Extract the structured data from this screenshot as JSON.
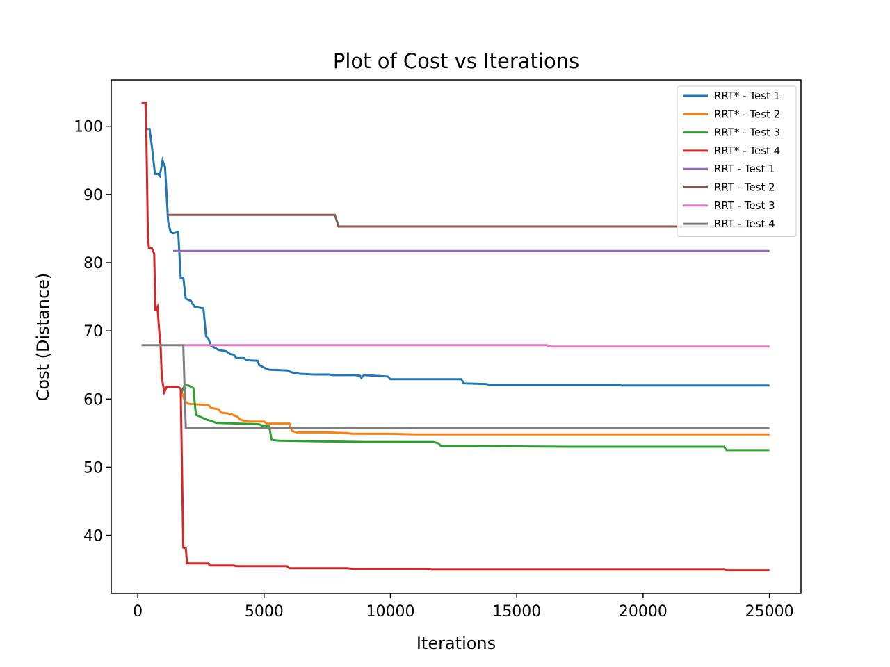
{
  "chart_data": {
    "type": "line",
    "title": "Plot of Cost vs Iterations",
    "xlabel": "Iterations",
    "ylabel": "Cost (Distance)",
    "xlim": [
      -1050,
      26250
    ],
    "ylim": [
      31.5,
      106.8
    ],
    "xticks": [
      0,
      5000,
      10000,
      15000,
      20000,
      25000
    ],
    "yticks": [
      40,
      50,
      60,
      70,
      80,
      90,
      100
    ],
    "grid": false,
    "legend_position": "top-right",
    "series": [
      {
        "name": "RRT* - Test 1",
        "color": "#1f77b4",
        "points": [
          [
            300,
            103.4
          ],
          [
            330,
            99.6
          ],
          [
            470,
            99.6
          ],
          [
            560,
            97.0
          ],
          [
            680,
            93.0
          ],
          [
            800,
            93.0
          ],
          [
            870,
            92.7
          ],
          [
            980,
            95.0
          ],
          [
            1080,
            94.0
          ],
          [
            1200,
            86.0
          ],
          [
            1300,
            84.5
          ],
          [
            1400,
            84.3
          ],
          [
            1600,
            84.5
          ],
          [
            1700,
            77.8
          ],
          [
            1800,
            77.8
          ],
          [
            1900,
            74.7
          ],
          [
            2100,
            74.4
          ],
          [
            2250,
            73.5
          ],
          [
            2600,
            73.3
          ],
          [
            2700,
            69.2
          ],
          [
            2800,
            68.8
          ],
          [
            2900,
            67.8
          ],
          [
            3200,
            67.2
          ],
          [
            3500,
            67.0
          ],
          [
            3650,
            66.6
          ],
          [
            3800,
            66.5
          ],
          [
            3900,
            66.0
          ],
          [
            4200,
            66.0
          ],
          [
            4300,
            65.7
          ],
          [
            4750,
            65.6
          ],
          [
            4800,
            65.0
          ],
          [
            5000,
            64.6
          ],
          [
            5200,
            64.3
          ],
          [
            5900,
            64.2
          ],
          [
            6100,
            63.9
          ],
          [
            6400,
            63.7
          ],
          [
            7000,
            63.6
          ],
          [
            7600,
            63.6
          ],
          [
            7700,
            63.5
          ],
          [
            8600,
            63.5
          ],
          [
            8800,
            63.4
          ],
          [
            8850,
            63.1
          ],
          [
            8950,
            63.5
          ],
          [
            9900,
            63.3
          ],
          [
            10000,
            62.9
          ],
          [
            10800,
            62.9
          ],
          [
            12800,
            62.9
          ],
          [
            12900,
            62.3
          ],
          [
            13800,
            62.2
          ],
          [
            13900,
            62.1
          ],
          [
            19000,
            62.1
          ],
          [
            19100,
            62.0
          ],
          [
            25000,
            62.0
          ]
        ]
      },
      {
        "name": "RRT* - Test 2",
        "color": "#ff7f0e",
        "points": [
          [
            1700,
            61.5
          ],
          [
            1850,
            59.8
          ],
          [
            2000,
            59.3
          ],
          [
            2800,
            59.1
          ],
          [
            2900,
            58.7
          ],
          [
            3200,
            58.5
          ],
          [
            3300,
            58.0
          ],
          [
            3700,
            57.8
          ],
          [
            3800,
            57.6
          ],
          [
            3950,
            57.4
          ],
          [
            4050,
            57.0
          ],
          [
            4200,
            56.8
          ],
          [
            4400,
            56.7
          ],
          [
            5000,
            56.7
          ],
          [
            5100,
            56.4
          ],
          [
            6000,
            56.4
          ],
          [
            6100,
            55.3
          ],
          [
            6300,
            55.1
          ],
          [
            7500,
            55.1
          ],
          [
            8300,
            55.0
          ],
          [
            8500,
            54.9
          ],
          [
            10000,
            54.9
          ],
          [
            11000,
            54.8
          ],
          [
            25000,
            54.8
          ]
        ]
      },
      {
        "name": "RRT* - Test 3",
        "color": "#2ca02c",
        "points": [
          [
            1700,
            61.5
          ],
          [
            1750,
            61.1
          ],
          [
            1850,
            62.0
          ],
          [
            2000,
            62.0
          ],
          [
            2200,
            61.6
          ],
          [
            2300,
            57.7
          ],
          [
            2700,
            57.0
          ],
          [
            2900,
            56.8
          ],
          [
            3100,
            56.5
          ],
          [
            4800,
            56.3
          ],
          [
            5000,
            56.0
          ],
          [
            5200,
            56.0
          ],
          [
            5300,
            54.0
          ],
          [
            5600,
            53.9
          ],
          [
            7000,
            53.8
          ],
          [
            9000,
            53.7
          ],
          [
            11700,
            53.7
          ],
          [
            11900,
            53.5
          ],
          [
            12000,
            53.1
          ],
          [
            13000,
            53.1
          ],
          [
            17000,
            53.0
          ],
          [
            23200,
            53.0
          ],
          [
            23300,
            52.5
          ],
          [
            25000,
            52.5
          ]
        ]
      },
      {
        "name": "RRT* - Test 4",
        "color": "#d62728",
        "points": [
          [
            150,
            103.4
          ],
          [
            320,
            103.4
          ],
          [
            400,
            84.0
          ],
          [
            440,
            82.2
          ],
          [
            560,
            82.1
          ],
          [
            650,
            81.3
          ],
          [
            680,
            76.0
          ],
          [
            700,
            72.9
          ],
          [
            780,
            73.5
          ],
          [
            850,
            70.0
          ],
          [
            900,
            68.0
          ],
          [
            950,
            63.2
          ],
          [
            1050,
            61.0
          ],
          [
            1150,
            61.8
          ],
          [
            1500,
            61.8
          ],
          [
            1600,
            61.8
          ],
          [
            1700,
            61.5
          ],
          [
            1800,
            38.2
          ],
          [
            1900,
            38.1
          ],
          [
            1950,
            35.9
          ],
          [
            2800,
            35.9
          ],
          [
            2850,
            35.6
          ],
          [
            3800,
            35.6
          ],
          [
            3900,
            35.5
          ],
          [
            5900,
            35.5
          ],
          [
            6000,
            35.2
          ],
          [
            8300,
            35.2
          ],
          [
            8500,
            35.1
          ],
          [
            11500,
            35.1
          ],
          [
            11600,
            35.0
          ],
          [
            23200,
            35.0
          ],
          [
            23300,
            34.9
          ],
          [
            25000,
            34.9
          ]
        ]
      },
      {
        "name": "RRT - Test 1",
        "color": "#9467bd",
        "points": [
          [
            1400,
            81.7
          ],
          [
            25000,
            81.7
          ]
        ]
      },
      {
        "name": "RRT - Test 2",
        "color": "#8c564b",
        "points": [
          [
            1200,
            87.0
          ],
          [
            7800,
            87.0
          ],
          [
            7950,
            85.3
          ],
          [
            25000,
            85.3
          ]
        ]
      },
      {
        "name": "RRT - Test 3",
        "color": "#e377c2",
        "points": [
          [
            1800,
            67.9
          ],
          [
            16200,
            67.9
          ],
          [
            16350,
            67.7
          ],
          [
            25000,
            67.7
          ]
        ]
      },
      {
        "name": "RRT - Test 4",
        "color": "#7f7f7f",
        "points": [
          [
            150,
            67.9
          ],
          [
            1800,
            67.9
          ],
          [
            1900,
            55.7
          ],
          [
            25000,
            55.7
          ]
        ]
      }
    ]
  }
}
